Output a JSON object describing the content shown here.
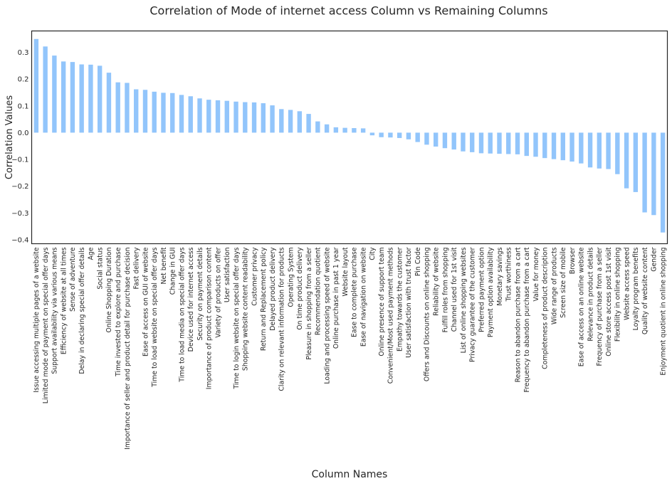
{
  "chart_data": {
    "type": "bar",
    "title": "Correlation of Mode of internet access Column vs Remaining Columns",
    "xlabel": "Column Names",
    "ylabel": "Correlation Values",
    "ylim": [
      -0.415,
      0.38
    ],
    "yticks": [
      -0.4,
      -0.3,
      -0.2,
      -0.1,
      0.0,
      0.1,
      0.2,
      0.3
    ],
    "ytick_labels": [
      "−0.4",
      "−0.3",
      "−0.2",
      "−0.1",
      "0.0",
      "0.1",
      "0.2",
      "0.3"
    ],
    "grid": false,
    "bar_color": "#92c5fb",
    "categories": [
      "Issue accessing multiple pages of a website",
      "Limited mode of payment on special offer days",
      "Support availability via various means",
      "Efficiency of website at all times",
      "Sense of adventure",
      "Delay in declaring special offer details",
      "Age",
      "Social status",
      "Online Shopping Duration",
      "Time invested to explore and purchase",
      "Importance of seller and product detail for purchase decision",
      "Fast delivery",
      "Ease of access on GUI of website",
      "Time to load website on special offer days",
      "Net benefit",
      "Change in GUI",
      "Time to load media on special offer days",
      "Device used for internet access",
      "Security on payment details",
      "Importance of product comparison content",
      "Variety of products on offer",
      "User satisfaction",
      "Time to login website on special offer days",
      "Shopping website content readability",
      "Customer privacy",
      "Return and Replacement policy",
      "Delayed product delivery",
      "Clarity on relevant information for products",
      "Operating System",
      "On time product delivery",
      "Pleasure in shopping from a seller",
      "Recommendation quotient",
      "Loading and processing speed of website",
      "Online purchase in past 1 year",
      "Website layout",
      "Ease to complete purchase",
      "Ease of navigation on website",
      "City",
      "Online presence of support team",
      "Convenient/Most used payment methods",
      "Empathy towards the customer",
      "User satisfaction with trust factor",
      "Pin Code",
      "Offers and Discounts on online shopping",
      "Reliability of website",
      "Fulfill roles from shopping",
      "Channel used for 1st visit",
      "List of online shopping websites",
      "Privacy guarantee of the customer",
      "Preferred payment option",
      "Payment option availability",
      "Monetary savings",
      "Trust worthiness",
      "Reason to abandon purchase from a cart",
      "Frequency to abandon purchase from a cart",
      "Value for money",
      "Completeness of product description",
      "Wide range of products",
      "Screen size of mobile",
      "Browser",
      "Ease of access on an online website",
      "Relevance in product details",
      "Frequency of purchase from a seller",
      "Online store access post 1st visit",
      "Flexibility in online shopping",
      "Website access speed",
      "Loyalty program benefits",
      "Quality of website content",
      "Gender",
      "Enjoyment quotient in online shopping"
    ],
    "values": [
      0.35,
      0.322,
      0.288,
      0.266,
      0.264,
      0.255,
      0.254,
      0.25,
      0.224,
      0.188,
      0.186,
      0.162,
      0.16,
      0.153,
      0.149,
      0.148,
      0.141,
      0.136,
      0.128,
      0.123,
      0.121,
      0.119,
      0.116,
      0.114,
      0.113,
      0.11,
      0.102,
      0.088,
      0.085,
      0.08,
      0.07,
      0.042,
      0.031,
      0.02,
      0.018,
      0.017,
      0.016,
      -0.01,
      -0.017,
      -0.018,
      -0.02,
      -0.025,
      -0.035,
      -0.045,
      -0.052,
      -0.058,
      -0.063,
      -0.07,
      -0.073,
      -0.077,
      -0.078,
      -0.079,
      -0.08,
      -0.081,
      -0.087,
      -0.09,
      -0.095,
      -0.099,
      -0.103,
      -0.108,
      -0.115,
      -0.13,
      -0.134,
      -0.136,
      -0.155,
      -0.208,
      -0.222,
      -0.298,
      -0.308,
      -0.373
    ]
  }
}
